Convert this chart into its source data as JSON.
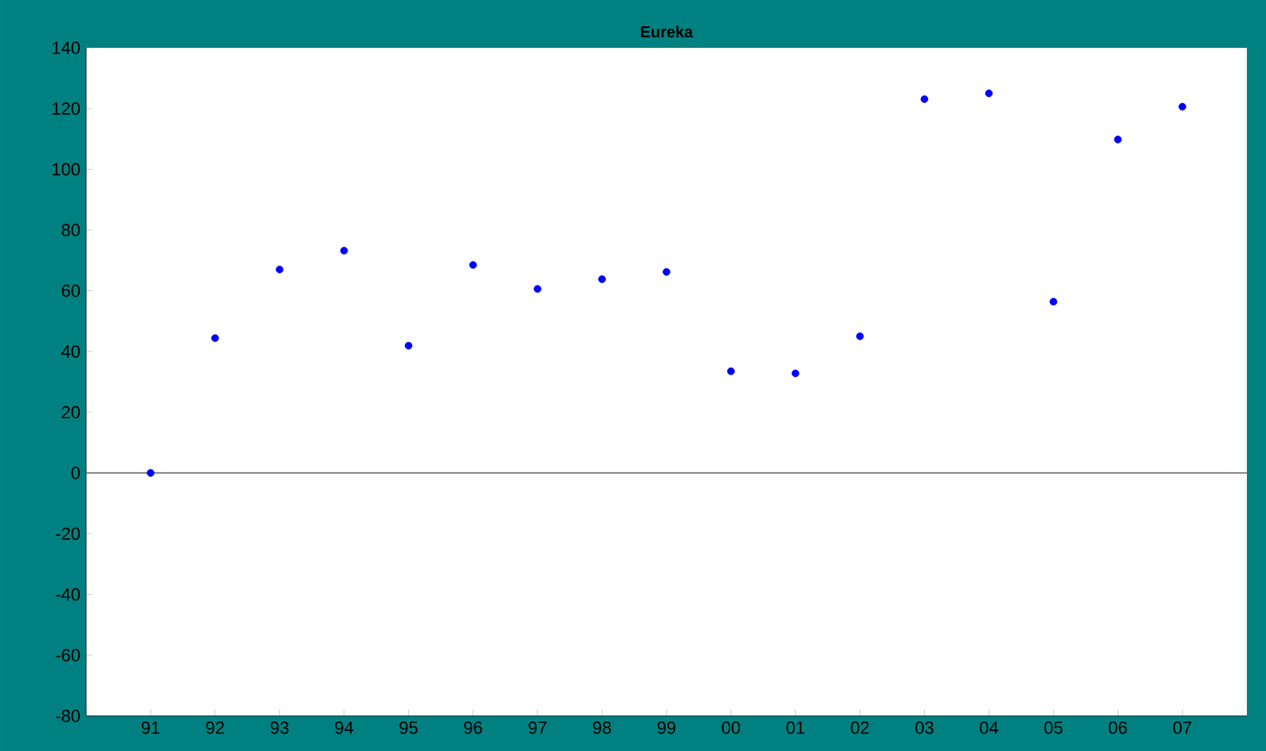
{
  "chart_data": {
    "type": "scatter",
    "title": "Eureka",
    "categories": [
      "91",
      "92",
      "93",
      "94",
      "95",
      "96",
      "97",
      "98",
      "99",
      "00",
      "01",
      "02",
      "03",
      "04",
      "05",
      "06",
      "07"
    ],
    "series": [
      {
        "color": "#0000ff",
        "values": [
          0,
          44.4,
          67,
          73.2,
          41.9,
          68.5,
          60.6,
          63.8,
          66.2,
          33.5,
          32.8,
          45,
          123.1,
          125,
          56.4,
          109.8,
          120.6
        ]
      }
    ],
    "ylim": [
      -80,
      140
    ],
    "yticks": [
      -80,
      -60,
      -40,
      -20,
      0,
      20,
      40,
      60,
      80,
      100,
      120,
      140
    ],
    "ref_lines": [
      {
        "axis": "y",
        "value": 0,
        "color": "#808080"
      }
    ]
  }
}
